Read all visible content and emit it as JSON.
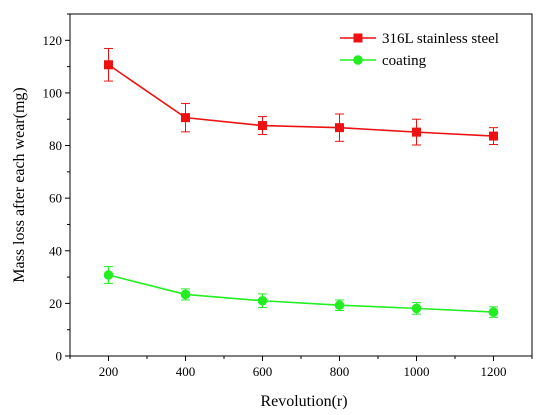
{
  "chart_data": {
    "type": "line",
    "xlabel": "Revolution(r)",
    "ylabel": "Mass loss after each wear(mg)",
    "x": [
      200,
      400,
      600,
      800,
      1000,
      1200
    ],
    "xticks": [
      200,
      400,
      600,
      800,
      1000,
      1200
    ],
    "yticks": [
      0,
      20,
      40,
      60,
      80,
      100,
      120
    ],
    "xlim": [
      100,
      1300
    ],
    "ylim": [
      0,
      130
    ],
    "grid": false,
    "legend_position": "top-right",
    "series": [
      {
        "name": "316L stainless steel",
        "color": "#ee1111",
        "marker": "square",
        "values": [
          110.7,
          90.6,
          87.6,
          86.8,
          85.1,
          83.6
        ],
        "errors": [
          6.2,
          5.4,
          3.4,
          5.2,
          4.9,
          3.2
        ]
      },
      {
        "name": "coating",
        "color": "#22ee22",
        "marker": "circle",
        "values": [
          30.8,
          23.4,
          21.0,
          19.3,
          18.1,
          16.7
        ],
        "errors": [
          3.2,
          2.1,
          2.6,
          2.0,
          2.2,
          2.0
        ]
      }
    ]
  }
}
